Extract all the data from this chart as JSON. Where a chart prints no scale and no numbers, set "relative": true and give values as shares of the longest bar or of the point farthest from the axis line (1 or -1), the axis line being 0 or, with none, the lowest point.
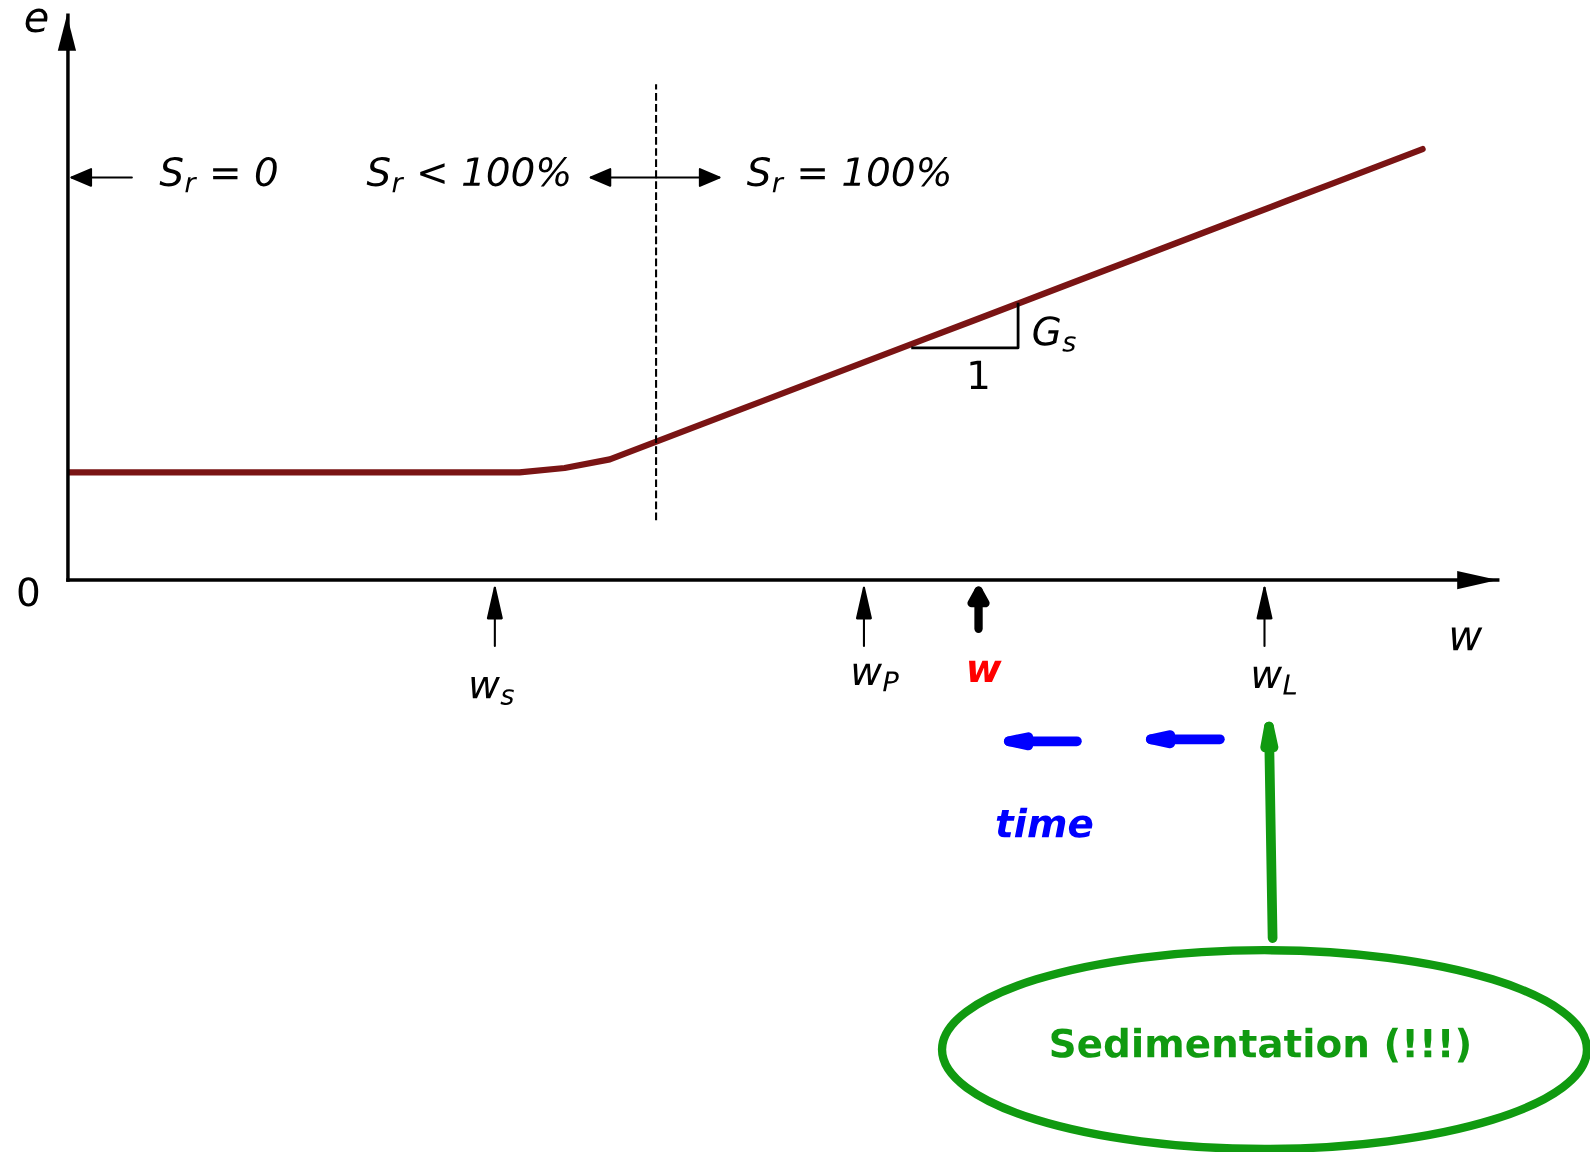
{
  "chart_data": {
    "type": "line",
    "relative": true,
    "xlabel": "w",
    "ylabel": "e",
    "categories": [
      null,
      null,
      null,
      null,
      null,
      null,
      null,
      null,
      null,
      null,
      null,
      null,
      null,
      null,
      null,
      null,
      null,
      null,
      null,
      null,
      null,
      null,
      null,
      null,
      null,
      null,
      null,
      null,
      null,
      null,
      null
    ],
    "series": [
      {
        "color": "#7a1414",
        "values": [
          0.25,
          0.25,
          0.25,
          0.25,
          0.25,
          0.25,
          0.25,
          0.25,
          0.25,
          0.25,
          0.25,
          0.26,
          0.28,
          0.32,
          0.36,
          0.4,
          0.44,
          0.48,
          0.52,
          0.56,
          0.6,
          0.64,
          0.68,
          0.72,
          0.76,
          0.8,
          0.84,
          0.88,
          0.92,
          0.96,
          1
        ]
      }
    ],
    "annotations": [
      "0",
      "S$_{r}$ = 0",
      "S$_{r}$ < 100%",
      "S$_{r}$ = 100%",
      "G$_{s}$",
      "1",
      "w$_{s}$",
      "w$_{P}$",
      "w",
      "w$_{L}$",
      "time",
      "Sedimentation (!!!)"
    ],
    "marker": "none",
    "line_style": "solid"
  }
}
